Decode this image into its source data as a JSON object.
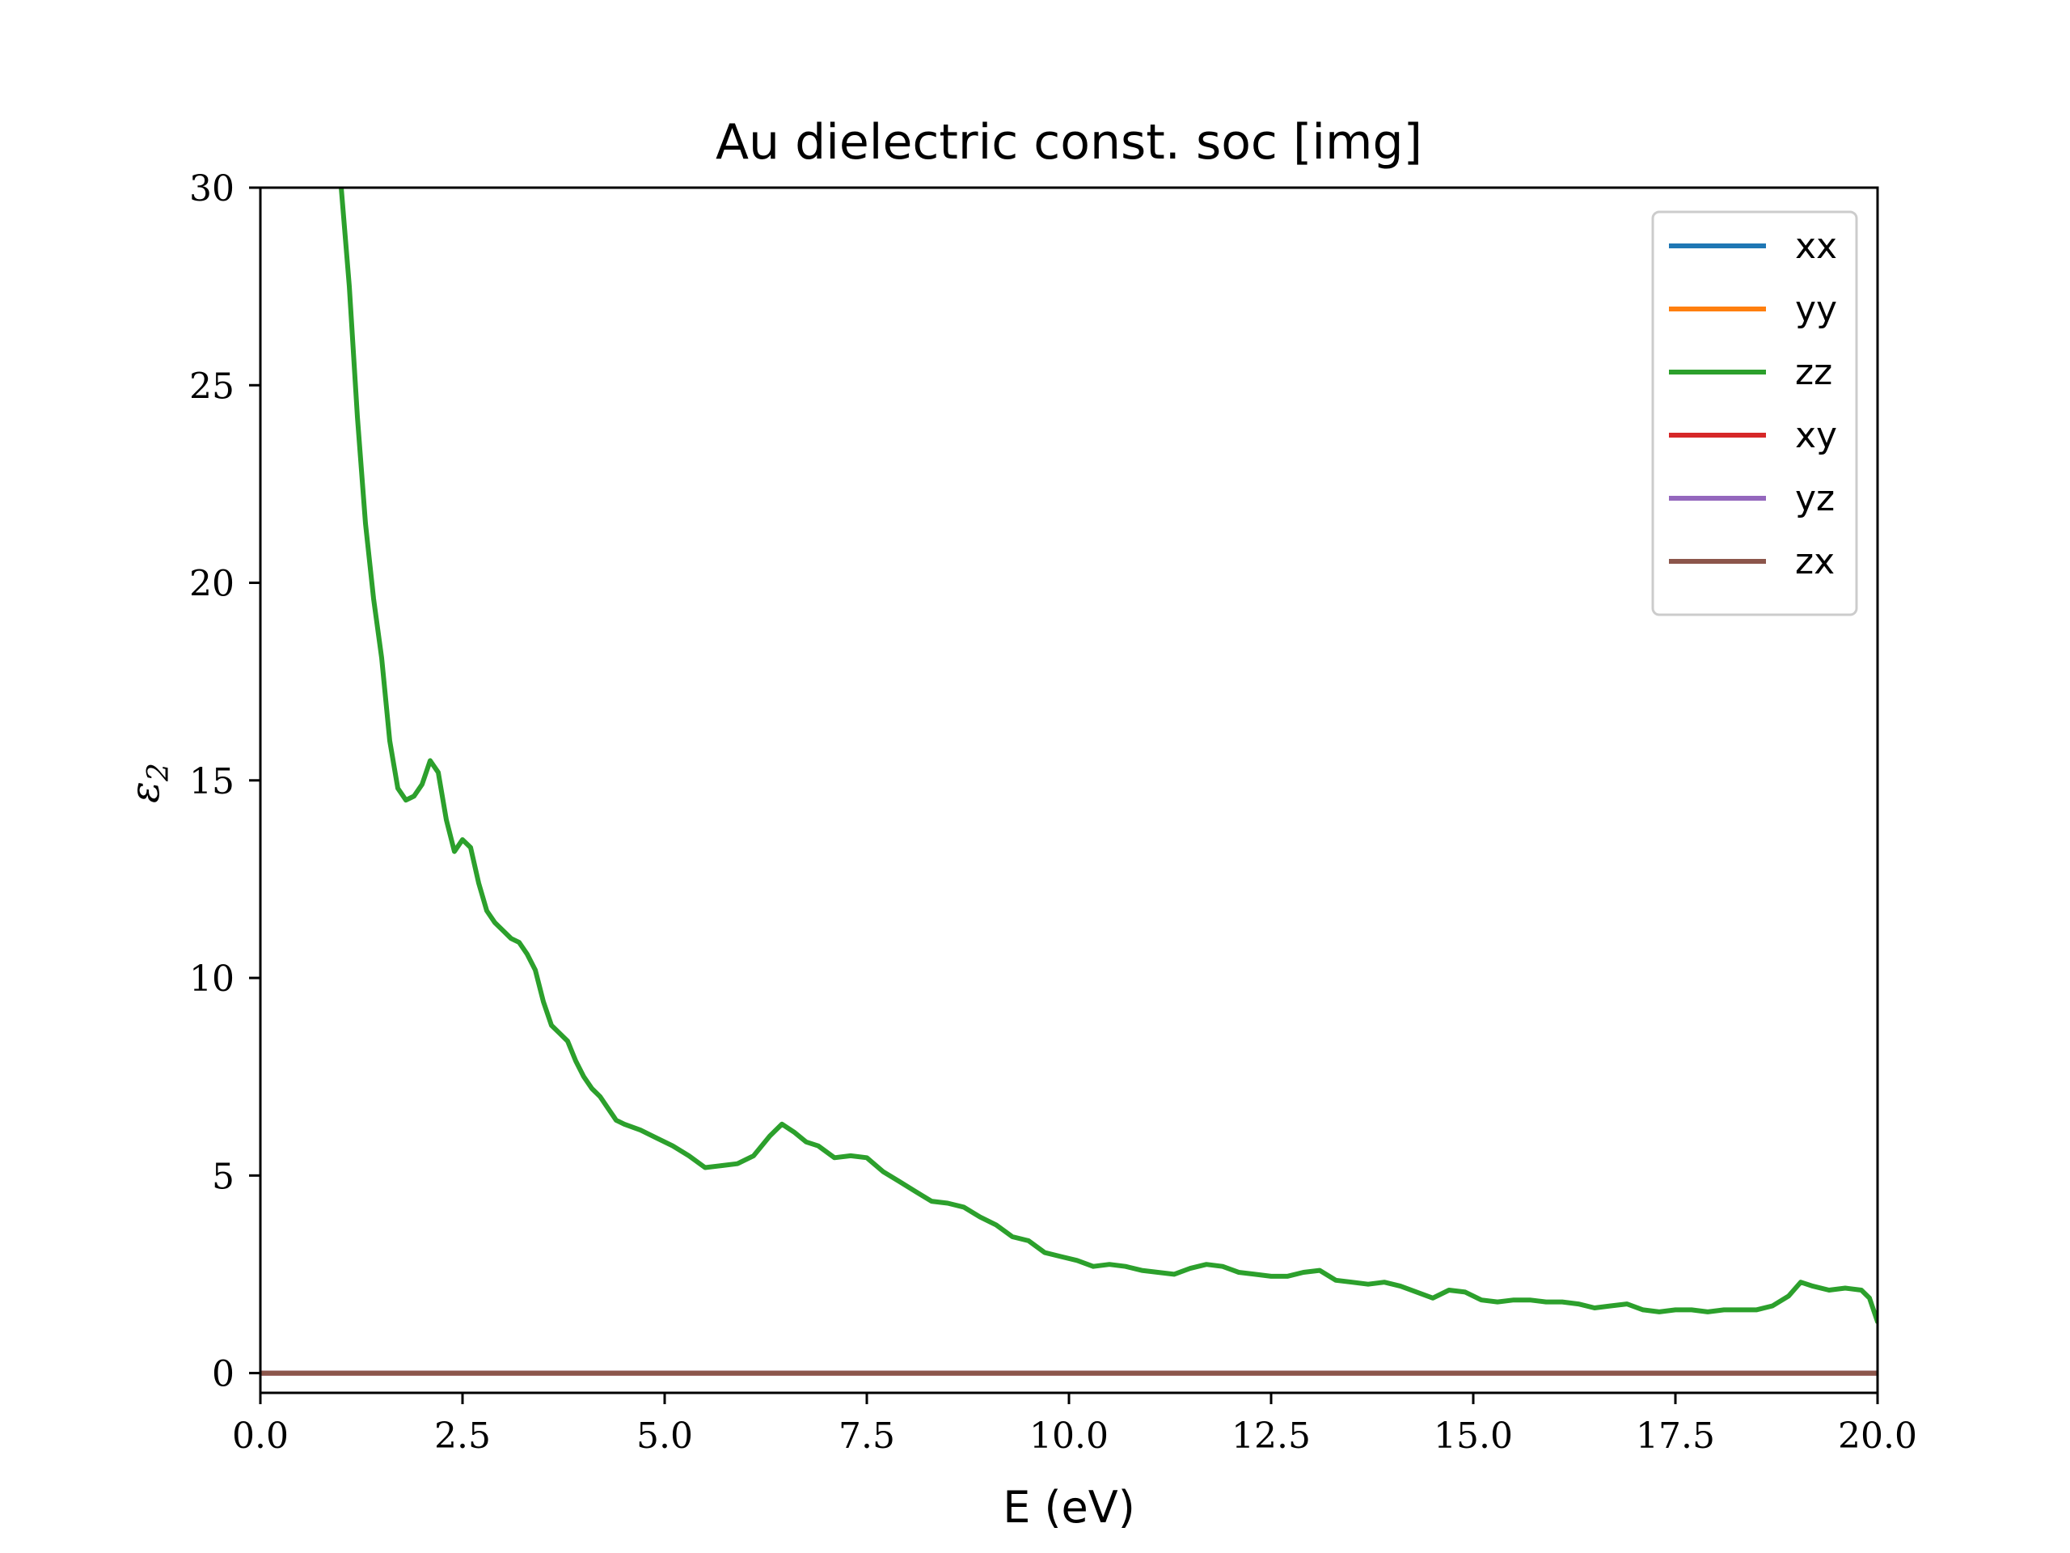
{
  "chart_data": {
    "type": "line",
    "title": "Au dielectric const. soc [img]",
    "xlabel": "E (eV)",
    "ylabel": "ε",
    "ylabel_subscript": "2",
    "xlim": [
      0,
      20
    ],
    "ylim": [
      -0.5,
      30
    ],
    "xticks": [
      0,
      2.5,
      5,
      7.5,
      10,
      12.5,
      15,
      17.5,
      20
    ],
    "xtick_labels": [
      "0.0",
      "2.5",
      "5.0",
      "7.5",
      "10.0",
      "12.5",
      "15.0",
      "17.5",
      "20.0"
    ],
    "yticks": [
      0,
      5,
      10,
      15,
      20,
      25,
      30
    ],
    "ytick_labels": [
      "0",
      "5",
      "10",
      "15",
      "20",
      "25",
      "30"
    ],
    "grid": false,
    "legend_position": "top-right",
    "series": [
      {
        "name": "xx",
        "color": "#1f77b4",
        "x": [
          0,
          20
        ],
        "y": [
          0,
          0
        ]
      },
      {
        "name": "yy",
        "color": "#ff7f0e",
        "x": [
          0,
          20
        ],
        "y": [
          0,
          0
        ]
      },
      {
        "name": "zz",
        "color": "#2ca02c",
        "x": [
          1.0,
          1.1,
          1.2,
          1.3,
          1.4,
          1.5,
          1.6,
          1.7,
          1.8,
          1.9,
          2.0,
          2.1,
          2.2,
          2.3,
          2.4,
          2.5,
          2.6,
          2.7,
          2.8,
          2.9,
          3.0,
          3.1,
          3.2,
          3.3,
          3.4,
          3.5,
          3.6,
          3.7,
          3.8,
          3.9,
          4.0,
          4.1,
          4.2,
          4.3,
          4.4,
          4.5,
          4.7,
          4.9,
          5.1,
          5.3,
          5.5,
          5.7,
          5.9,
          6.1,
          6.3,
          6.45,
          6.6,
          6.75,
          6.9,
          7.1,
          7.3,
          7.5,
          7.7,
          7.9,
          8.1,
          8.3,
          8.5,
          8.7,
          8.9,
          9.1,
          9.3,
          9.5,
          9.7,
          9.9,
          10.1,
          10.3,
          10.5,
          10.7,
          10.9,
          11.1,
          11.3,
          11.5,
          11.7,
          11.9,
          12.1,
          12.3,
          12.5,
          12.7,
          12.9,
          13.1,
          13.3,
          13.5,
          13.7,
          13.9,
          14.1,
          14.3,
          14.5,
          14.7,
          14.9,
          15.1,
          15.3,
          15.5,
          15.7,
          15.9,
          16.1,
          16.3,
          16.5,
          16.7,
          16.9,
          17.1,
          17.3,
          17.5,
          17.7,
          17.9,
          18.1,
          18.3,
          18.5,
          18.7,
          18.9,
          19.05,
          19.2,
          19.4,
          19.6,
          19.8,
          19.9,
          20.0
        ],
        "y": [
          30.0,
          27.5,
          24.2,
          21.5,
          19.6,
          18.1,
          16.0,
          14.8,
          14.5,
          14.6,
          14.9,
          15.5,
          15.2,
          14.0,
          13.2,
          13.5,
          13.3,
          12.4,
          11.7,
          11.4,
          11.2,
          11.0,
          10.9,
          10.6,
          10.2,
          9.4,
          8.8,
          8.6,
          8.4,
          7.9,
          7.5,
          7.2,
          7.0,
          6.7,
          6.4,
          6.3,
          6.15,
          5.95,
          5.75,
          5.5,
          5.2,
          5.25,
          5.3,
          5.5,
          6.0,
          6.3,
          6.1,
          5.85,
          5.75,
          5.45,
          5.5,
          5.45,
          5.1,
          4.85,
          4.6,
          4.35,
          4.3,
          4.2,
          3.95,
          3.75,
          3.45,
          3.35,
          3.05,
          2.95,
          2.85,
          2.7,
          2.75,
          2.7,
          2.6,
          2.55,
          2.5,
          2.65,
          2.75,
          2.7,
          2.55,
          2.5,
          2.45,
          2.45,
          2.55,
          2.6,
          2.35,
          2.3,
          2.25,
          2.3,
          2.2,
          2.05,
          1.9,
          2.1,
          2.05,
          1.85,
          1.8,
          1.85,
          1.85,
          1.8,
          1.8,
          1.75,
          1.65,
          1.7,
          1.75,
          1.6,
          1.55,
          1.6,
          1.6,
          1.55,
          1.6,
          1.6,
          1.6,
          1.7,
          1.95,
          2.3,
          2.2,
          2.1,
          2.15,
          2.1,
          1.9,
          1.3
        ]
      },
      {
        "name": "xy",
        "color": "#d62728",
        "x": [
          0,
          20
        ],
        "y": [
          0,
          0
        ]
      },
      {
        "name": "yz",
        "color": "#9467bd",
        "x": [
          0,
          20
        ],
        "y": [
          0,
          0
        ]
      },
      {
        "name": "zx",
        "color": "#8c564b",
        "x": [
          0,
          20
        ],
        "y": [
          0,
          0
        ]
      }
    ]
  }
}
